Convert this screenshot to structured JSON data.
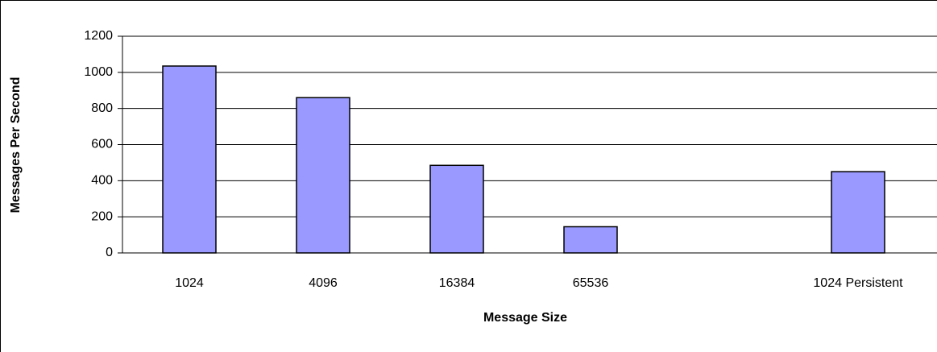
{
  "chart_data": {
    "type": "bar",
    "x_label": "Message Size",
    "y_label": "Messages Per Second",
    "categories": [
      "1024",
      "4096",
      "16384",
      "65536",
      null,
      "1024 Persistent"
    ],
    "values": [
      1035,
      860,
      485,
      145,
      null,
      450
    ],
    "color": "#9999ff",
    "ylim": [
      0,
      1200
    ],
    "yticks": [
      0,
      200,
      400,
      600,
      800,
      1000,
      1200
    ],
    "grid": true
  }
}
